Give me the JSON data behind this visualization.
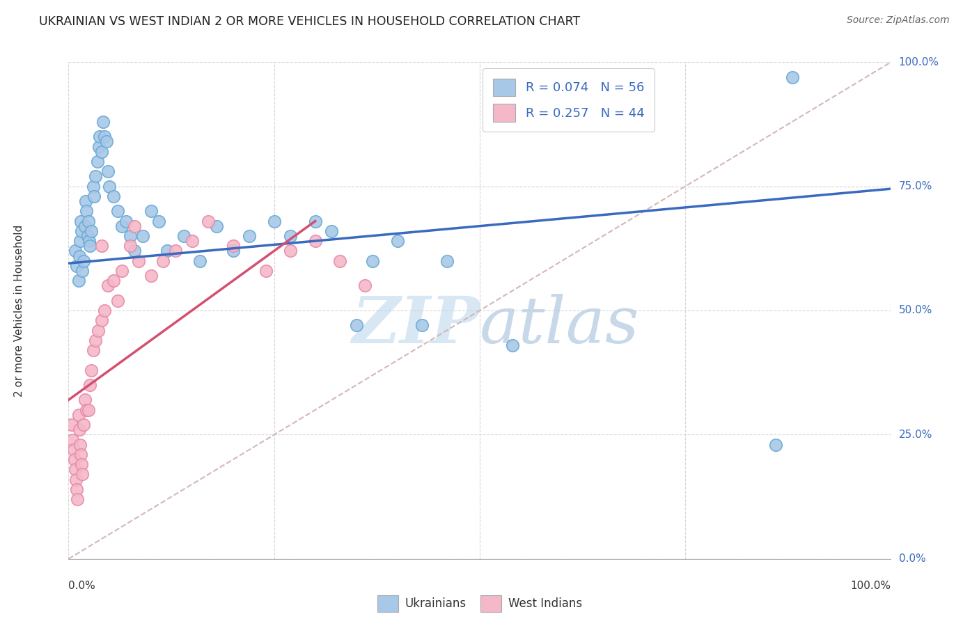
{
  "title": "UKRAINIAN VS WEST INDIAN 2 OR MORE VEHICLES IN HOUSEHOLD CORRELATION CHART",
  "source": "Source: ZipAtlas.com",
  "ylabel": "2 or more Vehicles in Household",
  "xlim": [
    0.0,
    1.0
  ],
  "ylim": [
    0.0,
    1.0
  ],
  "ytick_values": [
    0.0,
    0.25,
    0.5,
    0.75,
    1.0
  ],
  "ytick_labels": [
    "0.0%",
    "25.0%",
    "50.0%",
    "75.0%",
    "100.0%"
  ],
  "xtick_values": [
    0.0,
    0.25,
    0.5,
    0.75,
    1.0
  ],
  "xtick_labels": [
    "0.0%",
    "25.0%",
    "50.0%",
    "75.0%",
    "100.0%"
  ],
  "ukrainian_color": "#a8c8e8",
  "ukrainian_edge_color": "#6aaad4",
  "west_indian_color": "#f4b8c8",
  "west_indian_edge_color": "#e88aaa",
  "trend_ukrainian_color": "#3a6abf",
  "trend_west_indian_color": "#d45070",
  "trend_diagonal_color": "#d0b0b0",
  "watermark_zip": "#c8ddf0",
  "watermark_atlas": "#9ab8d8",
  "legend_label1": "R = 0.074   N = 56",
  "legend_label2": "R = 0.257   N = 44",
  "bottom_label1": "Ukrainians",
  "bottom_label2": "West Indians",
  "u_trend_x0": 0.0,
  "u_trend_y0": 0.595,
  "u_trend_x1": 1.0,
  "u_trend_y1": 0.745,
  "wi_trend_x0": 0.0,
  "wi_trend_y0": 0.32,
  "wi_trend_x1": 0.3,
  "wi_trend_y1": 0.68,
  "ukrainian_x": [
    0.008,
    0.01,
    0.012,
    0.013,
    0.014,
    0.015,
    0.016,
    0.017,
    0.018,
    0.02,
    0.021,
    0.022,
    0.023,
    0.024,
    0.025,
    0.026,
    0.028,
    0.03,
    0.031,
    0.033,
    0.035,
    0.037,
    0.038,
    0.04,
    0.042,
    0.044,
    0.046,
    0.048,
    0.05,
    0.055,
    0.06,
    0.065,
    0.07,
    0.075,
    0.08,
    0.09,
    0.1,
    0.11,
    0.12,
    0.14,
    0.16,
    0.18,
    0.2,
    0.22,
    0.25,
    0.27,
    0.3,
    0.32,
    0.35,
    0.37,
    0.4,
    0.43,
    0.46,
    0.54,
    0.86,
    0.88
  ],
  "ukrainian_y": [
    0.62,
    0.59,
    0.56,
    0.61,
    0.64,
    0.68,
    0.66,
    0.58,
    0.6,
    0.67,
    0.72,
    0.7,
    0.65,
    0.68,
    0.64,
    0.63,
    0.66,
    0.75,
    0.73,
    0.77,
    0.8,
    0.83,
    0.85,
    0.82,
    0.88,
    0.85,
    0.84,
    0.78,
    0.75,
    0.73,
    0.7,
    0.67,
    0.68,
    0.65,
    0.62,
    0.65,
    0.7,
    0.68,
    0.62,
    0.65,
    0.6,
    0.67,
    0.62,
    0.65,
    0.68,
    0.65,
    0.68,
    0.66,
    0.47,
    0.6,
    0.64,
    0.47,
    0.6,
    0.43,
    0.23,
    0.97
  ],
  "west_indian_x": [
    0.004,
    0.005,
    0.006,
    0.007,
    0.008,
    0.009,
    0.01,
    0.011,
    0.012,
    0.013,
    0.014,
    0.015,
    0.016,
    0.017,
    0.018,
    0.02,
    0.022,
    0.024,
    0.026,
    0.028,
    0.03,
    0.033,
    0.036,
    0.04,
    0.044,
    0.048,
    0.055,
    0.06,
    0.065,
    0.075,
    0.085,
    0.1,
    0.115,
    0.13,
    0.15,
    0.17,
    0.2,
    0.24,
    0.27,
    0.3,
    0.33,
    0.36,
    0.04,
    0.08
  ],
  "west_indian_y": [
    0.27,
    0.24,
    0.22,
    0.2,
    0.18,
    0.16,
    0.14,
    0.12,
    0.29,
    0.26,
    0.23,
    0.21,
    0.19,
    0.17,
    0.27,
    0.32,
    0.3,
    0.3,
    0.35,
    0.38,
    0.42,
    0.44,
    0.46,
    0.48,
    0.5,
    0.55,
    0.56,
    0.52,
    0.58,
    0.63,
    0.6,
    0.57,
    0.6,
    0.62,
    0.64,
    0.68,
    0.63,
    0.58,
    0.62,
    0.64,
    0.6,
    0.55,
    0.63,
    0.67
  ]
}
